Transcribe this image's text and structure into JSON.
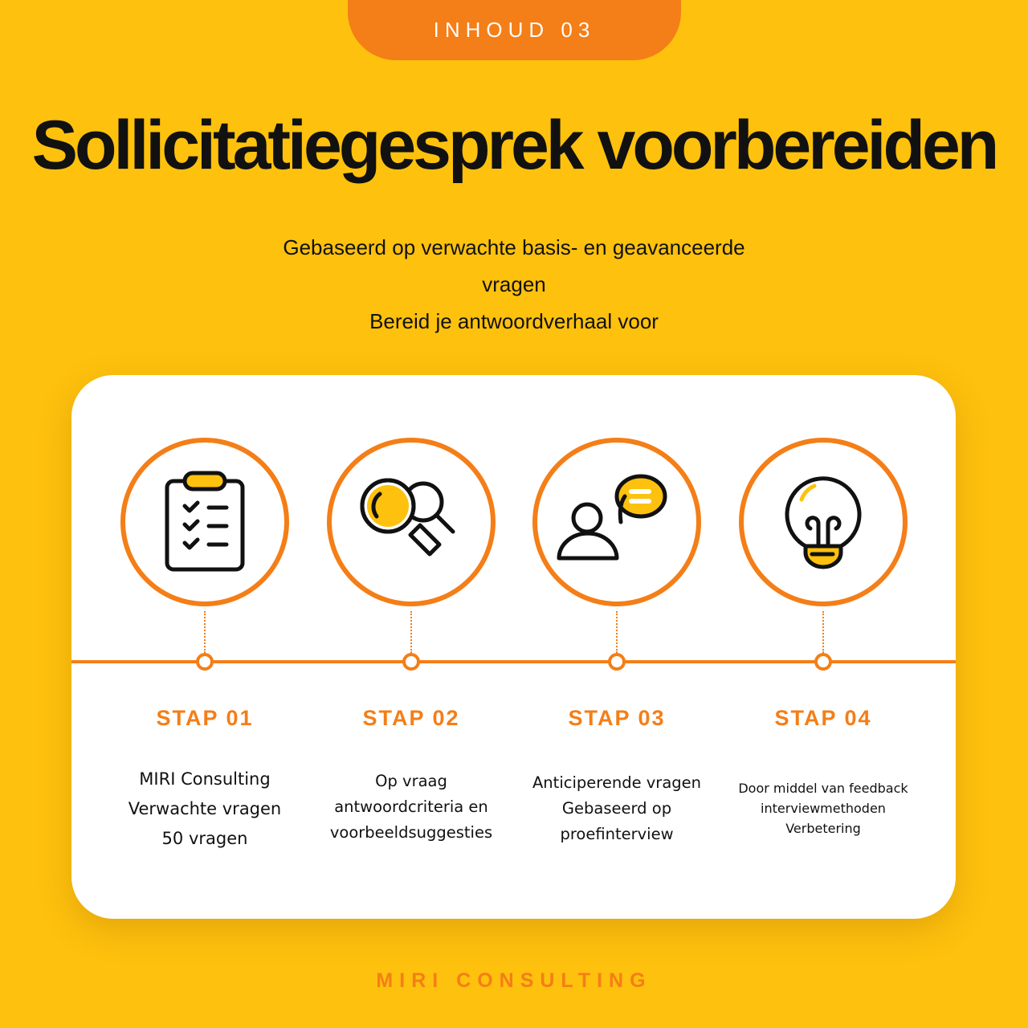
{
  "header": {
    "tab_label": "INHOUD 03",
    "title": "Sollicitatiegesprek voorbereiden",
    "subtitle_lines": [
      "Gebaseerd op verwachte basis- en geavanceerde",
      "vragen",
      "Bereid je antwoordverhaal voor"
    ]
  },
  "steps": [
    {
      "label": "STAP 01",
      "icon": "clipboard-checklist-icon",
      "lines": [
        "MIRI Consulting",
        "Verwachte vragen",
        "50 vragen"
      ]
    },
    {
      "label": "STAP 02",
      "icon": "magnifying-glass-icon",
      "lines": [
        "Op vraag",
        "antwoordcriteria en",
        "voorbeeldsuggesties"
      ]
    },
    {
      "label": "STAP 03",
      "icon": "person-speech-bubble-icon",
      "lines": [
        "Anticiperende vragen",
        "Gebaseerd op",
        "proefinterview"
      ]
    },
    {
      "label": "STAP 04",
      "icon": "lightbulb-icon",
      "lines": [
        "Door middel van feedback",
        "interviewmethoden",
        "Verbetering"
      ]
    }
  ],
  "footer": "MIRI CONSULTING",
  "colors": {
    "background": "#FEC10D",
    "accent": "#F47E17",
    "card": "#FFFFFF"
  }
}
